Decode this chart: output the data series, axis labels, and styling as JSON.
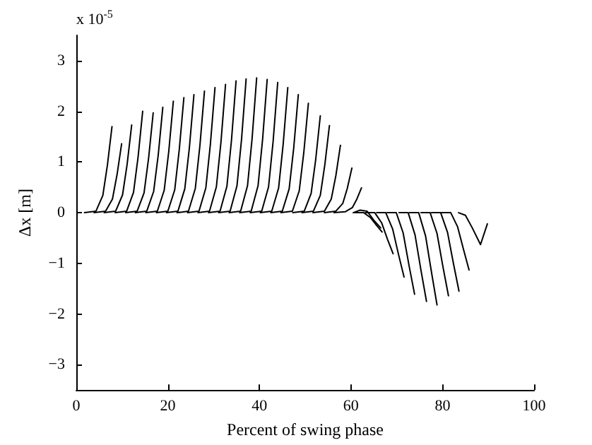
{
  "chart_data": {
    "type": "line",
    "xlabel": "Percent of swing phase",
    "ylabel": "Δx [m]",
    "annotations": [
      "x 10$^{-5}$"
    ],
    "xlim": [
      0,
      100
    ],
    "xticks": [
      0,
      20,
      40,
      60,
      80,
      100
    ],
    "ylim": [
      -3.5,
      3.5
    ],
    "yticks": [
      -3,
      -2,
      -1,
      0,
      1,
      2,
      3
    ],
    "marker": "none",
    "line_style": "solid",
    "series": [
      {
        "color": "#000000",
        "x": [
          1.8,
          4.3,
          5.8,
          6.8,
          7.8
        ],
        "values": [
          0,
          0.03,
          0.34,
          0.94,
          1.7
        ]
      },
      {
        "color": "#000000",
        "x": [
          3.9,
          6.4,
          7.9,
          8.9,
          9.9
        ],
        "values": [
          0,
          0.03,
          0.27,
          0.75,
          1.36
        ]
      },
      {
        "color": "#000000",
        "x": [
          6.1,
          8.6,
          10.1,
          11.1,
          12.1
        ],
        "values": [
          0,
          0.03,
          0.35,
          0.95,
          1.73
        ]
      },
      {
        "color": "#000000",
        "x": [
          8.5,
          11,
          12.5,
          13.5,
          14.5
        ],
        "values": [
          0,
          0.03,
          0.4,
          1.1,
          2.0
        ]
      },
      {
        "color": "#000000",
        "x": [
          10.8,
          13.3,
          14.8,
          15.8,
          16.8
        ],
        "values": [
          0,
          0.03,
          0.39,
          1.08,
          1.97
        ]
      },
      {
        "color": "#000000",
        "x": [
          12.9,
          15.4,
          16.9,
          17.9,
          18.9
        ],
        "values": [
          0,
          0.03,
          0.42,
          1.14,
          2.08
        ]
      },
      {
        "color": "#000000",
        "x": [
          15.2,
          17.7,
          19.2,
          20.2,
          21.2
        ],
        "values": [
          0,
          0.03,
          0.44,
          1.21,
          2.2
        ]
      },
      {
        "color": "#000000",
        "x": [
          17.5,
          20,
          21.5,
          22.5,
          23.5
        ],
        "values": [
          0,
          0.03,
          0.45,
          1.25,
          2.27
        ]
      },
      {
        "color": "#000000",
        "x": [
          19.7,
          22.2,
          23.7,
          24.7,
          25.7
        ],
        "values": [
          0,
          0.03,
          0.47,
          1.28,
          2.33
        ]
      },
      {
        "color": "#000000",
        "x": [
          22,
          24.5,
          26,
          27,
          28
        ],
        "values": [
          0,
          0.03,
          0.48,
          1.32,
          2.4
        ]
      },
      {
        "color": "#000000",
        "x": [
          24.3,
          26.8,
          28.3,
          29.3,
          30.3
        ],
        "values": [
          0,
          0.03,
          0.49,
          1.36,
          2.47
        ]
      },
      {
        "color": "#000000",
        "x": [
          26.6,
          29.1,
          30.6,
          31.6,
          32.6
        ],
        "values": [
          0,
          0.03,
          0.51,
          1.39,
          2.53
        ]
      },
      {
        "color": "#000000",
        "x": [
          28.9,
          31.4,
          32.9,
          33.9,
          34.9
        ],
        "values": [
          0,
          0.03,
          0.52,
          1.43,
          2.6
        ]
      },
      {
        "color": "#000000",
        "x": [
          31.1,
          33.6,
          35.1,
          36.1,
          37.1
        ],
        "values": [
          0,
          0.03,
          0.53,
          1.45,
          2.64
        ]
      },
      {
        "color": "#000000",
        "x": [
          33.4,
          35.9,
          37.4,
          38.4,
          39.4
        ],
        "values": [
          0,
          0.03,
          0.53,
          1.46,
          2.66
        ]
      },
      {
        "color": "#000000",
        "x": [
          35.7,
          38.2,
          39.7,
          40.7,
          41.7
        ],
        "values": [
          0,
          0.03,
          0.53,
          1.45,
          2.63
        ]
      },
      {
        "color": "#000000",
        "x": [
          38,
          40.5,
          42,
          43,
          44
        ],
        "values": [
          0,
          0.03,
          0.51,
          1.41,
          2.57
        ]
      },
      {
        "color": "#000000",
        "x": [
          40.2,
          42.7,
          44.2,
          45.2,
          46.2
        ],
        "values": [
          0,
          0.03,
          0.49,
          1.36,
          2.47
        ]
      },
      {
        "color": "#000000",
        "x": [
          42.5,
          45,
          46.5,
          47.5,
          48.5
        ],
        "values": [
          0,
          0.03,
          0.47,
          1.28,
          2.33
        ]
      },
      {
        "color": "#000000",
        "x": [
          44.7,
          47.2,
          48.7,
          49.7,
          50.7
        ],
        "values": [
          0,
          0.03,
          0.43,
          1.19,
          2.16
        ]
      },
      {
        "color": "#000000",
        "x": [
          47.3,
          49.8,
          51.3,
          52.3,
          53.3
        ],
        "values": [
          0,
          0.03,
          0.38,
          1.05,
          1.91
        ]
      },
      {
        "color": "#000000",
        "x": [
          49.3,
          51.8,
          53.3,
          54.3,
          55.3
        ],
        "values": [
          0,
          0.03,
          0.34,
          0.95,
          1.72
        ]
      },
      {
        "color": "#000000",
        "x": [
          51.7,
          54.2,
          55.7,
          56.7,
          57.7
        ],
        "values": [
          0,
          0.03,
          0.27,
          0.73,
          1.33
        ]
      },
      {
        "color": "#000000",
        "x": [
          54.2,
          56.7,
          58.2,
          59.2,
          60.2
        ],
        "values": [
          0,
          0.03,
          0.18,
          0.48,
          0.88
        ]
      },
      {
        "color": "#000000",
        "x": [
          56.3,
          58.8,
          60.3,
          61.3,
          62.3
        ],
        "values": [
          0,
          0.02,
          0.1,
          0.27,
          0.49
        ]
      },
      {
        "color": "#000000",
        "x": [
          60.5,
          62,
          63.5,
          65,
          66.5
        ],
        "values": [
          0,
          0.05,
          0.03,
          -0.15,
          -0.3
        ]
      },
      {
        "color": "#000000",
        "x": [
          60.8,
          62.8,
          64.3,
          65.6,
          66.8
        ],
        "values": [
          0,
          0,
          -0.1,
          -0.25,
          -0.38
        ]
      },
      {
        "color": "#000000",
        "x": [
          63.2,
          65.2,
          66.7,
          68,
          69.2
        ],
        "values": [
          0,
          0,
          -0.2,
          -0.53,
          -0.81
        ]
      },
      {
        "color": "#000000",
        "x": [
          65.6,
          67.6,
          69.1,
          70.4,
          71.6
        ],
        "values": [
          0,
          0,
          -0.32,
          -0.83,
          -1.27
        ]
      },
      {
        "color": "#000000",
        "x": [
          67.9,
          69.9,
          71.4,
          72.7,
          73.9
        ],
        "values": [
          0,
          0,
          -0.4,
          -1.05,
          -1.61
        ]
      },
      {
        "color": "#000000",
        "x": [
          70.5,
          72.5,
          74,
          75.3,
          76.5
        ],
        "values": [
          0,
          0,
          -0.44,
          -1.14,
          -1.75
        ]
      },
      {
        "color": "#000000",
        "x": [
          72.8,
          74.8,
          76.3,
          77.6,
          78.8
        ],
        "values": [
          0,
          0,
          -0.46,
          -1.18,
          -1.82
        ]
      },
      {
        "color": "#000000",
        "x": [
          75.3,
          77.3,
          78.8,
          80.1,
          81.3
        ],
        "values": [
          0,
          0,
          -0.41,
          -1.07,
          -1.64
        ]
      },
      {
        "color": "#000000",
        "x": [
          77.6,
          79.6,
          81.1,
          82.4,
          83.6
        ],
        "values": [
          0,
          0,
          -0.39,
          -1.01,
          -1.55
        ]
      },
      {
        "color": "#000000",
        "x": [
          79.8,
          81.8,
          83.3,
          84.6,
          85.8
        ],
        "values": [
          0,
          0,
          -0.28,
          -0.73,
          -1.13
        ]
      },
      {
        "color": "#000000",
        "x": [
          83.5,
          85,
          86.5,
          88.3,
          89.8
        ],
        "values": [
          0,
          -0.05,
          -0.3,
          -0.63,
          -0.22
        ]
      }
    ]
  }
}
